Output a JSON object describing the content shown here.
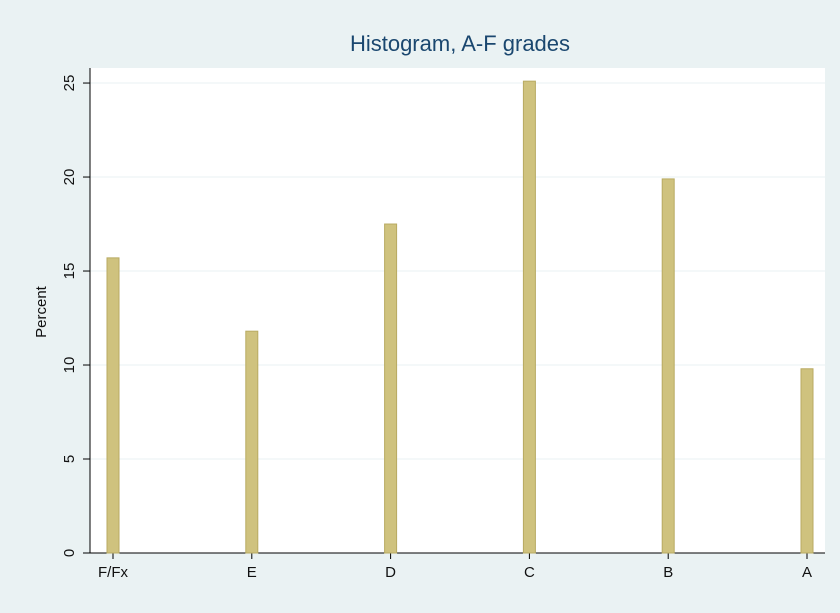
{
  "chart_data": {
    "type": "bar",
    "title": "Histogram, A-F grades",
    "y_label": "Percent",
    "categories": [
      "F/Fx",
      "E",
      "D",
      "C",
      "B",
      "A"
    ],
    "values": [
      15.7,
      11.8,
      17.5,
      25.1,
      19.9,
      9.8
    ],
    "color": "#cfc27e",
    "ylim": [
      0,
      25.8
    ],
    "yticks": [
      0,
      5,
      10,
      15,
      20,
      25
    ],
    "grid": true
  }
}
